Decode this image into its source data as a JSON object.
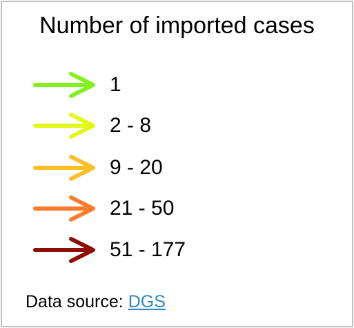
{
  "legend": {
    "title": "Number of imported cases",
    "items": [
      {
        "label": "1",
        "color": "#84f01c",
        "icon": "arrow-right-icon"
      },
      {
        "label": "2 - 8",
        "color": "#e3f718",
        "icon": "arrow-right-icon"
      },
      {
        "label": "9 - 20",
        "color": "#fcbf28",
        "icon": "arrow-right-icon"
      },
      {
        "label": "21 - 50",
        "color": "#fb7c2c",
        "icon": "arrow-right-icon"
      },
      {
        "label": "51 - 177",
        "color": "#8b0f04",
        "icon": "arrow-right-icon"
      }
    ]
  },
  "source": {
    "prefix": "Data source: ",
    "link_text": "DGS",
    "link_color": "#2e86c1"
  },
  "frame_color": "#bfbfbf"
}
